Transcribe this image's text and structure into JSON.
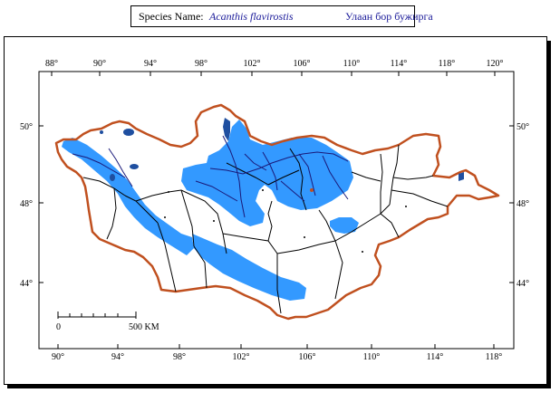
{
  "title": {
    "label": "Species Name:",
    "scientific_name": "Acanthis flavirostis",
    "mongolian_name": "Улаан бор бужирга"
  },
  "axes": {
    "top_longitudes": [
      "88°",
      "90°",
      "94°",
      "98°",
      "102°",
      "106°",
      "110°",
      "114°",
      "118°",
      "120°"
    ],
    "bottom_longitudes": [
      "90°",
      "94°",
      "98°",
      "102°",
      "106°",
      "110°",
      "114°",
      "118°"
    ],
    "left_latitudes": [
      "50°",
      "48°",
      "44°"
    ],
    "right_latitudes": [
      "50°",
      "48°",
      "44°"
    ]
  },
  "scale_bar": {
    "start": "0",
    "end": "500 KM"
  },
  "colors": {
    "border": "#c0501f",
    "range": "#3399ff",
    "river": "#1a1a7a",
    "lake": "#1f4fa0",
    "admin": "#000000"
  }
}
